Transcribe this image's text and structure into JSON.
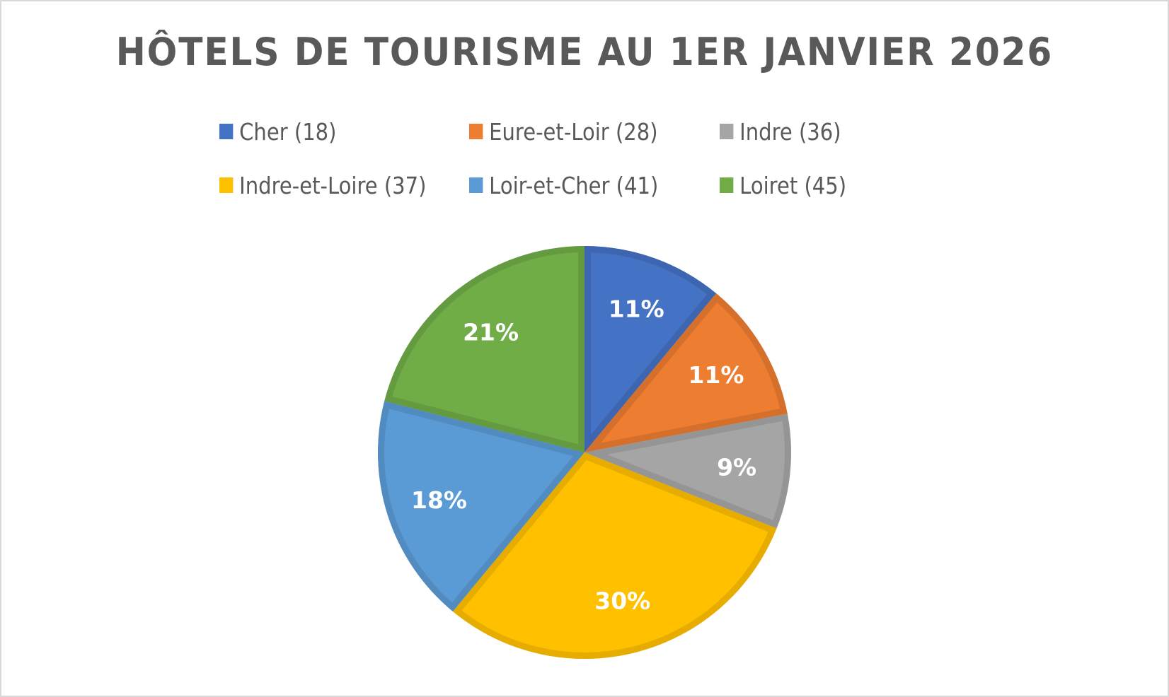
{
  "chart": {
    "title": "HÔTELS DE TOURISME AU 1ER JANVIER 2026",
    "legend": [
      {
        "label": "Cher (18)",
        "color": "#4472C4"
      },
      {
        "label": "Eure-et-Loir (28)",
        "color": "#ED7D31"
      },
      {
        "label": "Indre (36)",
        "color": "#A5A5A5"
      },
      {
        "label": "Indre-et-Loire (37)",
        "color": "#FFC000"
      },
      {
        "label": "Loir-et-Cher (41)",
        "color": "#5B9BD5"
      },
      {
        "label": "Loiret (45)",
        "color": "#70AD47"
      }
    ],
    "slices": [
      {
        "name": "Cher",
        "pct_label": "11%",
        "value": 11,
        "fill": "#4472C4",
        "stroke": "#3E66B0"
      },
      {
        "name": "Eure-et-Loir",
        "pct_label": "11%",
        "value": 11,
        "fill": "#ED7D31",
        "stroke": "#D4702C"
      },
      {
        "name": "Indre",
        "pct_label": "9%",
        "value": 9,
        "fill": "#A5A5A5",
        "stroke": "#959595"
      },
      {
        "name": "Indre-et-Loire",
        "pct_label": "30%",
        "value": 30,
        "fill": "#FFC000",
        "stroke": "#E6AD00"
      },
      {
        "name": "Loir-et-Cher",
        "pct_label": "18%",
        "value": 18,
        "fill": "#5B9BD5",
        "stroke": "#528BC0"
      },
      {
        "name": "Loiret",
        "pct_label": "21%",
        "value": 21,
        "fill": "#70AD47",
        "stroke": "#659B40"
      }
    ]
  },
  "chart_data": {
    "type": "pie",
    "title": "HÔTELS DE TOURISME AU 1ER JANVIER 2026",
    "categories": [
      "Cher (18)",
      "Eure-et-Loir (28)",
      "Indre (36)",
      "Indre-et-Loire (37)",
      "Loir-et-Cher (41)",
      "Loiret (45)"
    ],
    "values": [
      11,
      11,
      9,
      30,
      18,
      21
    ],
    "value_unit": "%",
    "legend_position": "top",
    "start_angle": 0,
    "direction": "clockwise"
  }
}
